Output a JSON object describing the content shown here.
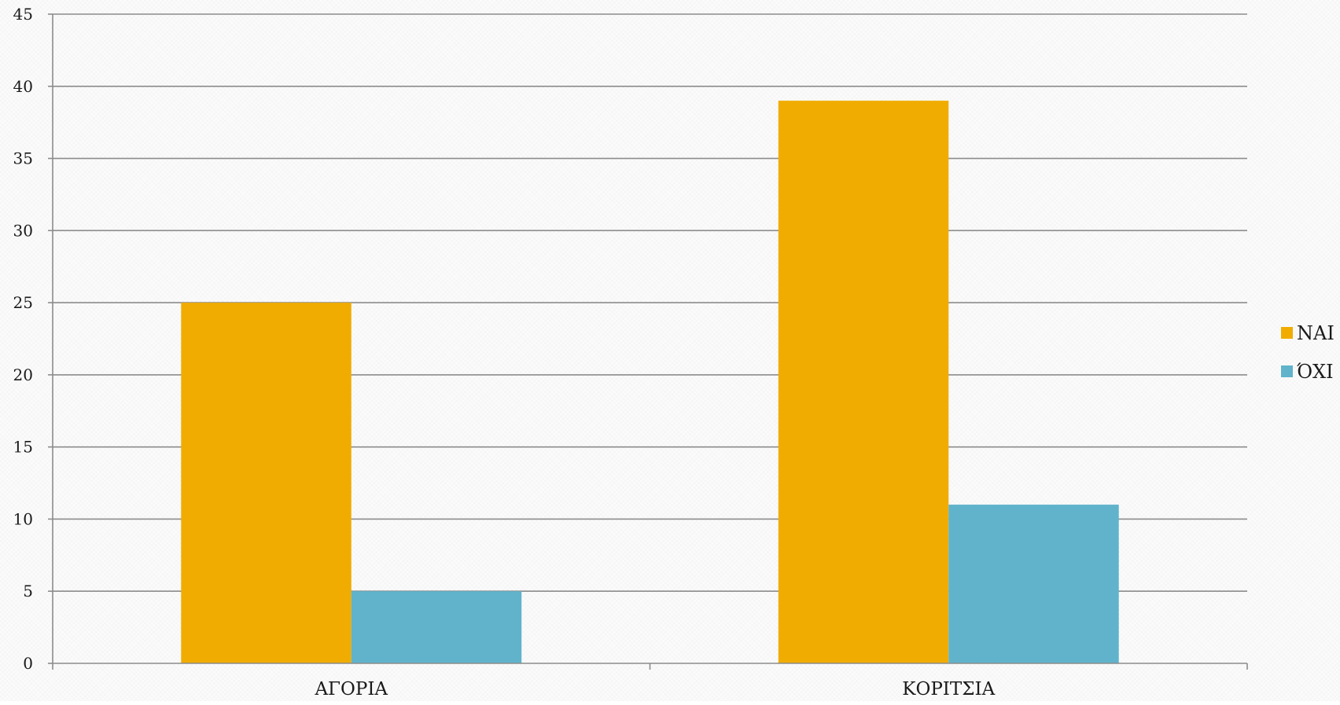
{
  "chart_data": {
    "type": "bar",
    "title": "",
    "xlabel": "",
    "ylabel": "",
    "categories": [
      "ΑΓΟΡΙΑ",
      "ΚΟΡΙΤΣΙΑ"
    ],
    "series": [
      {
        "name": "ΝΑΙ",
        "values": [
          25,
          39
        ],
        "color": "#F0AC00"
      },
      {
        "name": "ΌΧΙ",
        "values": [
          5,
          11
        ],
        "color": "#60B3CB"
      }
    ],
    "ylim": [
      0,
      45
    ],
    "yticks": [
      0,
      5,
      10,
      15,
      20,
      25,
      30,
      35,
      40,
      45
    ],
    "ytick_labels": [
      "0",
      "5",
      "10",
      "15",
      "20",
      "25",
      "30",
      "35",
      "40",
      "45"
    ],
    "grid": true,
    "legend_position": "right"
  },
  "colors": {
    "gridline": "#8c8c8c",
    "axis": "#8c8c8c"
  }
}
